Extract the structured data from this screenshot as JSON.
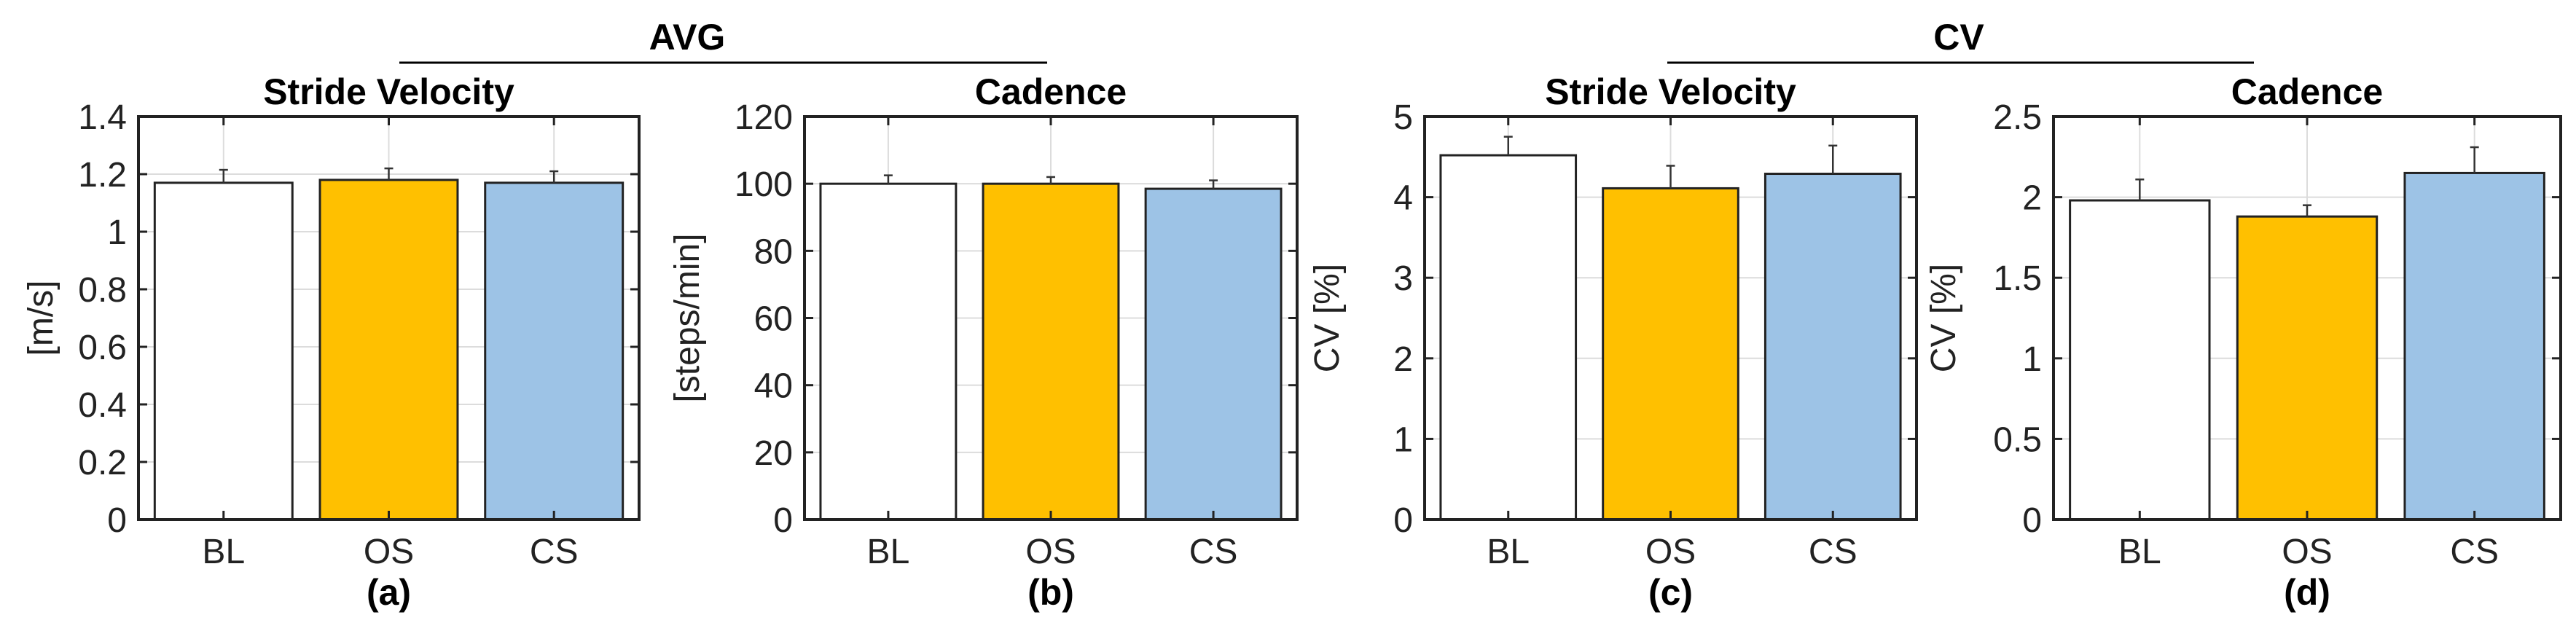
{
  "groups": [
    {
      "title": "AVG"
    },
    {
      "title": "CV"
    }
  ],
  "colors": {
    "BL": "#ffffff",
    "OS": "#ffc000",
    "CS": "#9dc3e6"
  },
  "chart_data": [
    {
      "type": "bar",
      "title": "Stride Velocity",
      "caption": "(a)",
      "categories": [
        "BL",
        "OS",
        "CS"
      ],
      "values": [
        1.17,
        1.18,
        1.17
      ],
      "errors": [
        0.045,
        0.04,
        0.04
      ],
      "ylabel": "[m/s]",
      "ylim": [
        0,
        1.4
      ],
      "yticks": [
        0,
        0.2,
        0.4,
        0.6,
        0.8,
        1,
        1.2,
        1.4
      ],
      "yticklabels": [
        "0",
        "0.2",
        "0.4",
        "0.6",
        "0.8",
        "1",
        "1.2",
        "1.4"
      ],
      "grid": true
    },
    {
      "type": "bar",
      "title": "Cadence",
      "caption": "(b)",
      "categories": [
        "BL",
        "OS",
        "CS"
      ],
      "values": [
        100,
        100,
        98.5
      ],
      "errors": [
        2.5,
        2,
        2.5
      ],
      "ylabel": "[steps/min]",
      "ylim": [
        0,
        120
      ],
      "yticks": [
        0,
        20,
        40,
        60,
        80,
        100,
        120
      ],
      "yticklabels": [
        "0",
        "20",
        "40",
        "60",
        "80",
        "100",
        "120"
      ],
      "grid": true
    },
    {
      "type": "bar",
      "title": "Stride Velocity",
      "caption": "(c)",
      "categories": [
        "BL",
        "OS",
        "CS"
      ],
      "values": [
        4.52,
        4.11,
        4.29
      ],
      "errors": [
        0.23,
        0.28,
        0.35
      ],
      "ylabel": "CV [%]",
      "ylim": [
        0,
        5
      ],
      "yticks": [
        0,
        1,
        2,
        3,
        4,
        5
      ],
      "yticklabels": [
        "0",
        "1",
        "2",
        "3",
        "4",
        "5"
      ],
      "grid": true
    },
    {
      "type": "bar",
      "title": "Cadence",
      "caption": "(d)",
      "categories": [
        "BL",
        "OS",
        "CS"
      ],
      "values": [
        1.98,
        1.88,
        2.15
      ],
      "errors": [
        0.13,
        0.07,
        0.16
      ],
      "ylabel": "CV [%]",
      "ylim": [
        0,
        2.5
      ],
      "yticks": [
        0,
        0.5,
        1,
        1.5,
        2,
        2.5
      ],
      "yticklabels": [
        "0",
        "0.5",
        "1",
        "1.5",
        "2",
        "2.5"
      ],
      "grid": true
    }
  ]
}
